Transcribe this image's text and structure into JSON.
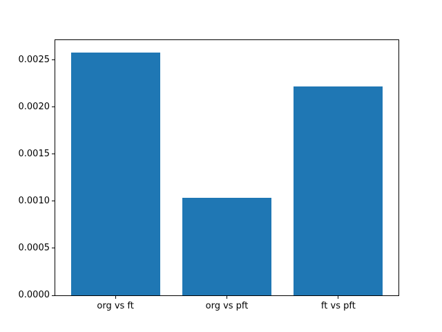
{
  "chart_data": {
    "type": "bar",
    "title": "",
    "xlabel": "",
    "ylabel": "",
    "categories": [
      "org vs ft",
      "org vs pft",
      "ft vs pft"
    ],
    "values": [
      0.00258,
      0.00104,
      0.00222
    ],
    "bar_color": "#1f77b4",
    "ylim": [
      0,
      0.002713
    ],
    "ytick_values": [
      0.0,
      0.0005,
      0.001,
      0.0015,
      0.002,
      0.0025
    ],
    "yticks": [
      "0.0000",
      "0.0005",
      "0.0010",
      "0.0015",
      "0.0020",
      "0.0025"
    ],
    "grid": false,
    "legend": null,
    "bar_width_fraction": 0.8
  },
  "figure": {
    "background": "#ffffff",
    "spine_color": "#000000"
  }
}
